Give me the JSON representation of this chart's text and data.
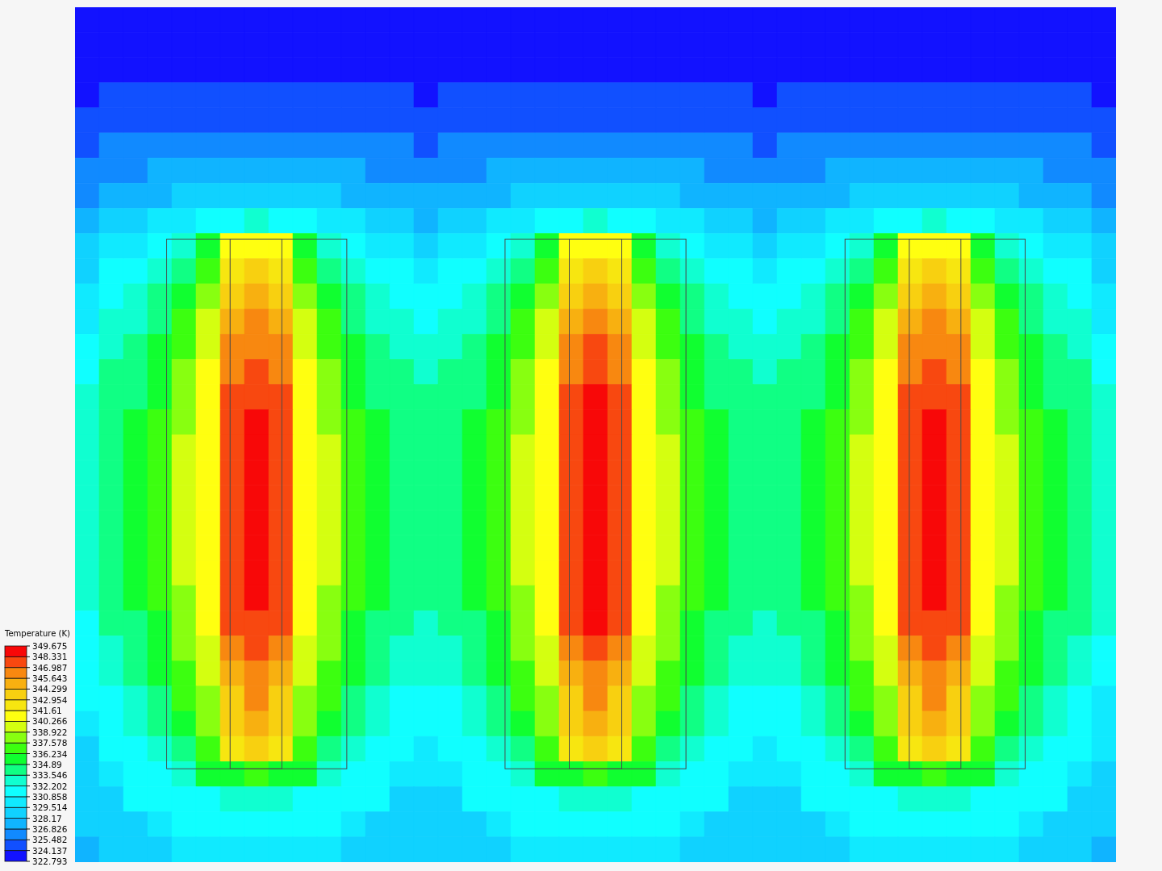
{
  "chart_data": {
    "type": "heatmap",
    "clabel": "Temperature (K)",
    "tick_labels": false,
    "categories": [
      null,
      null,
      null,
      null,
      null,
      null,
      null,
      null,
      null,
      null,
      null,
      null,
      null,
      null,
      null,
      null,
      null,
      null,
      null,
      null,
      null,
      null,
      null,
      null,
      null,
      null,
      null,
      null,
      null,
      null,
      null,
      null,
      null,
      null,
      null,
      null,
      null,
      null,
      null,
      null,
      null,
      null,
      null
    ],
    "y_categories": [
      null,
      null,
      null,
      null,
      null,
      null,
      null,
      null,
      null,
      null,
      null,
      null,
      null,
      null,
      null,
      null,
      null,
      null,
      null,
      null,
      null,
      null,
      null,
      null,
      null,
      null,
      null,
      null,
      null,
      null,
      null,
      null,
      null,
      null
    ],
    "clim": [
      322.793,
      349.675
    ],
    "cticks": [
      322.793,
      324.137,
      325.482,
      326.826,
      328.17,
      329.514,
      330.858,
      332.202,
      333.546,
      334.89,
      336.234,
      337.578,
      338.922,
      340.266,
      341.61,
      342.954,
      344.299,
      345.643,
      346.987,
      348.331,
      349.675
    ],
    "cells": [
      [
        323,
        323,
        323,
        323,
        323,
        323,
        323,
        323,
        323,
        323,
        323,
        323,
        323,
        323,
        323,
        323,
        323,
        323,
        323,
        323,
        323,
        323,
        323,
        323,
        323,
        323,
        323,
        323,
        323,
        323,
        323,
        323,
        323,
        323,
        323,
        323,
        323,
        323,
        323,
        323,
        323,
        323,
        323
      ],
      [
        323,
        323,
        323,
        323,
        323,
        323,
        323,
        323,
        323,
        323,
        323,
        323,
        323,
        323,
        323,
        323,
        323,
        323,
        323,
        323,
        323,
        323,
        323,
        323,
        323,
        323,
        323,
        323,
        323,
        323,
        323,
        323,
        323,
        323,
        323,
        323,
        323,
        323,
        323,
        323,
        323,
        323,
        323
      ],
      [
        323,
        323,
        323,
        323,
        323,
        323,
        323,
        323,
        323,
        323,
        323,
        323,
        323,
        323,
        323,
        323,
        323,
        323,
        323,
        323,
        323,
        323,
        323,
        323,
        323,
        323,
        323,
        323,
        323,
        323,
        323,
        323,
        323,
        323,
        323,
        323,
        323,
        323,
        323,
        323,
        323,
        323,
        323
      ],
      [
        323,
        325,
        325,
        325,
        325,
        325,
        325,
        325,
        325,
        325,
        325,
        325,
        325,
        325,
        323,
        325,
        325,
        325,
        325,
        325,
        325,
        325,
        325,
        325,
        325,
        325,
        325,
        325,
        323,
        325,
        325,
        325,
        325,
        325,
        325,
        325,
        325,
        325,
        325,
        325,
        325,
        325,
        323
      ],
      [
        325,
        325,
        325,
        325,
        325,
        325,
        325,
        325,
        325,
        325,
        325,
        325,
        325,
        325,
        325,
        325,
        325,
        325,
        325,
        325,
        325,
        325,
        325,
        325,
        325,
        325,
        325,
        325,
        325,
        325,
        325,
        325,
        325,
        325,
        325,
        325,
        325,
        325,
        325,
        325,
        325,
        325,
        325
      ],
      [
        325,
        326,
        326,
        326,
        326,
        326,
        326,
        326,
        326,
        326,
        326,
        326,
        326,
        326,
        325,
        326,
        326,
        326,
        326,
        326,
        326,
        326,
        326,
        326,
        326,
        326,
        326,
        326,
        325,
        326,
        326,
        326,
        326,
        326,
        326,
        326,
        326,
        326,
        326,
        326,
        326,
        326,
        325
      ],
      [
        326,
        326,
        326,
        327,
        327,
        327,
        327,
        327,
        327,
        327,
        327,
        327,
        326,
        326,
        326,
        326,
        326,
        327,
        327,
        327,
        327,
        327,
        327,
        327,
        327,
        327,
        326,
        326,
        326,
        326,
        326,
        327,
        327,
        327,
        327,
        327,
        327,
        327,
        327,
        327,
        326,
        326,
        326
      ],
      [
        326,
        327,
        327,
        327,
        329,
        329,
        329,
        329,
        329,
        329,
        329,
        327,
        327,
        327,
        327,
        327,
        327,
        327,
        329,
        329,
        329,
        329,
        329,
        329,
        329,
        327,
        327,
        327,
        327,
        327,
        327,
        327,
        329,
        329,
        329,
        329,
        329,
        329,
        329,
        327,
        327,
        327,
        326
      ],
      [
        327,
        329,
        329,
        330,
        330,
        332,
        332,
        333,
        332,
        332,
        330,
        330,
        329,
        329,
        327,
        329,
        329,
        330,
        330,
        332,
        332,
        333,
        332,
        332,
        330,
        330,
        329,
        329,
        327,
        329,
        329,
        330,
        330,
        332,
        332,
        333,
        332,
        332,
        330,
        330,
        329,
        329,
        327
      ],
      [
        329,
        330,
        330,
        332,
        333,
        336,
        341,
        341,
        341,
        336,
        333,
        332,
        330,
        330,
        329,
        330,
        330,
        332,
        333,
        336,
        341,
        341,
        341,
        336,
        333,
        332,
        330,
        330,
        329,
        330,
        330,
        332,
        333,
        336,
        341,
        341,
        341,
        336,
        333,
        332,
        330,
        330,
        329
      ],
      [
        329,
        332,
        332,
        333,
        334,
        337,
        342,
        344,
        342,
        337,
        334,
        333,
        332,
        332,
        330,
        332,
        332,
        333,
        334,
        337,
        342,
        344,
        342,
        337,
        334,
        333,
        332,
        332,
        330,
        332,
        332,
        333,
        334,
        337,
        342,
        344,
        342,
        337,
        334,
        333,
        332,
        332,
        329
      ],
      [
        330,
        332,
        333,
        334,
        336,
        338,
        344,
        345,
        344,
        338,
        336,
        334,
        333,
        332,
        332,
        332,
        333,
        334,
        336,
        338,
        344,
        345,
        344,
        338,
        336,
        334,
        333,
        332,
        332,
        332,
        333,
        334,
        336,
        338,
        344,
        345,
        344,
        338,
        336,
        334,
        333,
        332,
        330
      ],
      [
        330,
        333,
        333,
        334,
        337,
        340,
        345,
        346,
        345,
        340,
        337,
        334,
        333,
        333,
        332,
        333,
        333,
        334,
        337,
        340,
        345,
        346,
        345,
        340,
        337,
        334,
        333,
        333,
        332,
        333,
        333,
        334,
        337,
        340,
        345,
        346,
        345,
        340,
        337,
        334,
        333,
        333,
        330
      ],
      [
        332,
        333,
        334,
        336,
        337,
        340,
        346,
        346,
        346,
        340,
        337,
        336,
        334,
        333,
        333,
        333,
        334,
        336,
        337,
        340,
        346,
        348,
        346,
        340,
        337,
        336,
        334,
        333,
        333,
        333,
        334,
        336,
        337,
        340,
        346,
        346,
        346,
        340,
        337,
        336,
        334,
        333,
        332
      ],
      [
        332,
        334,
        334,
        336,
        338,
        341,
        346,
        348,
        346,
        341,
        338,
        336,
        334,
        334,
        333,
        334,
        334,
        336,
        338,
        341,
        346,
        348,
        346,
        341,
        338,
        336,
        334,
        334,
        333,
        334,
        334,
        336,
        338,
        341,
        346,
        348,
        346,
        341,
        338,
        336,
        334,
        334,
        332
      ],
      [
        333,
        334,
        334,
        336,
        338,
        341,
        348,
        348,
        348,
        341,
        338,
        336,
        334,
        334,
        334,
        334,
        334,
        336,
        338,
        341,
        348,
        349,
        348,
        341,
        338,
        336,
        334,
        334,
        334,
        334,
        334,
        336,
        338,
        341,
        348,
        348,
        348,
        341,
        338,
        336,
        334,
        334,
        333
      ],
      [
        333,
        334,
        336,
        337,
        338,
        341,
        348,
        349,
        348,
        341,
        338,
        337,
        336,
        334,
        334,
        334,
        336,
        337,
        338,
        341,
        348,
        349,
        348,
        341,
        338,
        337,
        336,
        334,
        334,
        334,
        336,
        337,
        338,
        341,
        348,
        349,
        348,
        341,
        338,
        337,
        336,
        334,
        333
      ],
      [
        333,
        334,
        336,
        337,
        340,
        341,
        348,
        349,
        348,
        341,
        340,
        337,
        336,
        334,
        334,
        334,
        336,
        337,
        340,
        341,
        348,
        349,
        348,
        341,
        340,
        337,
        336,
        334,
        334,
        334,
        336,
        337,
        340,
        341,
        348,
        349,
        348,
        341,
        340,
        337,
        336,
        334,
        333
      ],
      [
        333,
        334,
        336,
        337,
        340,
        341,
        348,
        349,
        348,
        341,
        340,
        337,
        336,
        334,
        334,
        334,
        336,
        337,
        340,
        341,
        348,
        349,
        348,
        341,
        340,
        337,
        336,
        334,
        334,
        334,
        336,
        337,
        340,
        341,
        348,
        349,
        348,
        341,
        340,
        337,
        336,
        334,
        333
      ],
      [
        333,
        334,
        336,
        337,
        340,
        341,
        348,
        349,
        348,
        341,
        340,
        337,
        336,
        334,
        334,
        334,
        336,
        337,
        340,
        341,
        348,
        349,
        348,
        341,
        340,
        337,
        336,
        334,
        334,
        334,
        336,
        337,
        340,
        341,
        348,
        349,
        348,
        341,
        340,
        337,
        336,
        334,
        333
      ],
      [
        333,
        334,
        336,
        337,
        340,
        341,
        348,
        349,
        348,
        341,
        340,
        337,
        336,
        334,
        334,
        334,
        336,
        337,
        340,
        341,
        348,
        349,
        348,
        341,
        340,
        337,
        336,
        334,
        334,
        334,
        336,
        337,
        340,
        341,
        348,
        349,
        348,
        341,
        340,
        337,
        336,
        334,
        333
      ],
      [
        333,
        334,
        336,
        337,
        340,
        341,
        348,
        349,
        348,
        341,
        340,
        337,
        336,
        334,
        334,
        334,
        336,
        337,
        340,
        341,
        348,
        349,
        348,
        341,
        340,
        337,
        336,
        334,
        334,
        334,
        336,
        337,
        340,
        341,
        348,
        349,
        348,
        341,
        340,
        337,
        336,
        334,
        333
      ],
      [
        333,
        334,
        336,
        337,
        340,
        341,
        348,
        349,
        348,
        341,
        340,
        337,
        336,
        334,
        334,
        334,
        336,
        337,
        340,
        341,
        348,
        349,
        348,
        341,
        340,
        337,
        336,
        334,
        334,
        334,
        336,
        337,
        340,
        341,
        348,
        349,
        348,
        341,
        340,
        337,
        336,
        334,
        333
      ],
      [
        333,
        334,
        336,
        337,
        338,
        341,
        348,
        349,
        348,
        341,
        338,
        337,
        336,
        334,
        334,
        334,
        336,
        337,
        338,
        341,
        348,
        349,
        348,
        341,
        338,
        337,
        336,
        334,
        334,
        334,
        336,
        337,
        338,
        341,
        348,
        349,
        348,
        341,
        338,
        337,
        336,
        334,
        333
      ],
      [
        332,
        334,
        334,
        336,
        338,
        341,
        348,
        348,
        348,
        341,
        338,
        336,
        334,
        334,
        333,
        334,
        334,
        336,
        338,
        341,
        348,
        349,
        348,
        341,
        338,
        336,
        334,
        334,
        333,
        334,
        334,
        336,
        338,
        341,
        348,
        348,
        348,
        341,
        338,
        336,
        334,
        334,
        333
      ],
      [
        332,
        333,
        334,
        336,
        338,
        340,
        346,
        348,
        346,
        340,
        338,
        336,
        334,
        333,
        333,
        333,
        334,
        336,
        338,
        340,
        346,
        348,
        346,
        340,
        338,
        336,
        334,
        333,
        333,
        333,
        334,
        336,
        338,
        340,
        346,
        348,
        346,
        340,
        338,
        336,
        334,
        333,
        332
      ],
      [
        332,
        333,
        334,
        336,
        337,
        340,
        345,
        346,
        345,
        340,
        337,
        336,
        334,
        333,
        333,
        333,
        334,
        336,
        337,
        340,
        345,
        346,
        345,
        340,
        337,
        336,
        334,
        333,
        333,
        333,
        334,
        336,
        337,
        340,
        345,
        346,
        345,
        340,
        337,
        336,
        334,
        333,
        332
      ],
      [
        332,
        332,
        333,
        334,
        337,
        338,
        344,
        346,
        344,
        338,
        337,
        334,
        333,
        332,
        332,
        332,
        333,
        334,
        337,
        338,
        344,
        346,
        344,
        338,
        337,
        334,
        333,
        332,
        332,
        332,
        333,
        334,
        337,
        338,
        344,
        346,
        344,
        338,
        337,
        334,
        333,
        332,
        330
      ],
      [
        330,
        332,
        333,
        334,
        336,
        338,
        344,
        345,
        344,
        338,
        336,
        334,
        333,
        332,
        332,
        332,
        333,
        334,
        336,
        338,
        344,
        345,
        344,
        338,
        336,
        334,
        333,
        332,
        332,
        332,
        333,
        334,
        336,
        338,
        344,
        345,
        344,
        338,
        336,
        334,
        333,
        332,
        330
      ],
      [
        329,
        332,
        332,
        333,
        334,
        337,
        342,
        344,
        342,
        337,
        334,
        333,
        332,
        332,
        330,
        332,
        332,
        333,
        334,
        337,
        342,
        344,
        342,
        337,
        334,
        333,
        332,
        332,
        330,
        332,
        332,
        333,
        334,
        337,
        342,
        344,
        342,
        337,
        334,
        333,
        332,
        332,
        330
      ],
      [
        329,
        330,
        332,
        332,
        333,
        336,
        336,
        337,
        336,
        336,
        333,
        332,
        332,
        330,
        330,
        330,
        332,
        332,
        333,
        336,
        336,
        337,
        336,
        336,
        333,
        332,
        332,
        330,
        330,
        330,
        332,
        332,
        333,
        336,
        336,
        337,
        336,
        336,
        333,
        332,
        332,
        330,
        329
      ],
      [
        329,
        329,
        332,
        332,
        332,
        332,
        333,
        333,
        333,
        332,
        332,
        332,
        332,
        329,
        329,
        329,
        332,
        332,
        332,
        332,
        333,
        333,
        333,
        332,
        332,
        332,
        332,
        329,
        329,
        329,
        332,
        332,
        332,
        332,
        333,
        333,
        333,
        332,
        332,
        332,
        332,
        329,
        329
      ],
      [
        329,
        329,
        329,
        330,
        332,
        332,
        332,
        332,
        332,
        332,
        332,
        330,
        329,
        329,
        329,
        329,
        329,
        330,
        332,
        332,
        332,
        332,
        332,
        332,
        332,
        330,
        329,
        329,
        329,
        329,
        329,
        330,
        332,
        332,
        332,
        332,
        332,
        332,
        332,
        330,
        329,
        329,
        329
      ],
      [
        327,
        329,
        329,
        329,
        330,
        330,
        330,
        330,
        330,
        330,
        330,
        329,
        329,
        329,
        329,
        329,
        329,
        329,
        330,
        330,
        330,
        330,
        330,
        330,
        330,
        329,
        329,
        329,
        329,
        329,
        329,
        329,
        330,
        330,
        330,
        330,
        330,
        330,
        330,
        329,
        329,
        329,
        327
      ]
    ]
  }
}
